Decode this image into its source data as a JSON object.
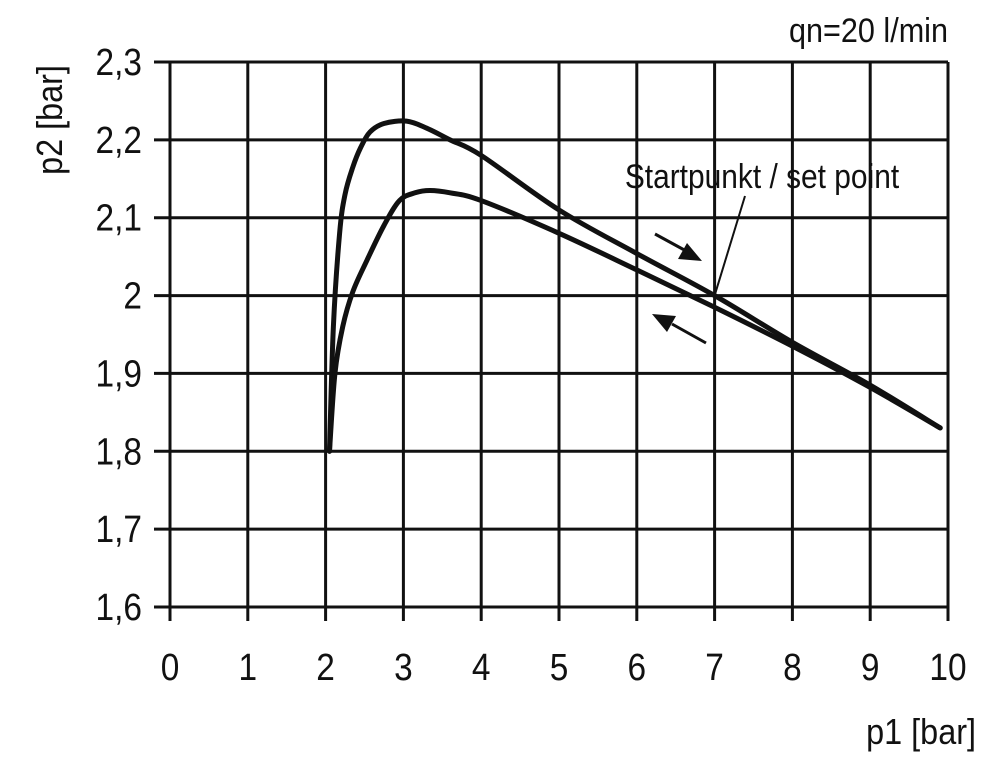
{
  "chart_data": {
    "type": "line",
    "title": "",
    "annotation_flow": "qn=20 l/min",
    "annotation_setpoint": "Startpunkt / set point",
    "setpoint": [
      7,
      2.0
    ],
    "xlabel": "p1 [bar]",
    "ylabel": "p2 [bar]",
    "xlim": [
      0,
      10
    ],
    "ylim": [
      1.6,
      2.3
    ],
    "grid": true,
    "x_ticks": [
      0,
      1,
      2,
      3,
      4,
      5,
      6,
      7,
      8,
      9,
      10
    ],
    "x_tick_labels": [
      "0",
      "1",
      "2",
      "3",
      "4",
      "5",
      "6",
      "7",
      "8",
      "9",
      "10"
    ],
    "y_ticks": [
      1.6,
      1.7,
      1.8,
      1.9,
      2.0,
      2.1,
      2.2,
      2.3
    ],
    "y_tick_labels": [
      "1,6",
      "1,7",
      "1,8",
      "1,9",
      "2",
      "2,1",
      "2,2",
      "2,3"
    ],
    "line_color": "#111111",
    "series": [
      {
        "x": [
          2.05,
          2.1,
          2.18,
          2.25,
          2.35,
          2.45,
          2.57,
          2.75,
          3.04,
          3.3,
          3.6,
          4.0,
          5.0,
          6.0,
          7.0,
          8.0,
          9.0,
          9.9
        ],
        "y": [
          1.8,
          1.96,
          2.08,
          2.13,
          2.165,
          2.19,
          2.21,
          2.221,
          2.224,
          2.215,
          2.2,
          2.18,
          2.11,
          2.054,
          2.0,
          1.94,
          1.885,
          1.83
        ]
      },
      {
        "x": [
          2.05,
          2.12,
          2.22,
          2.35,
          2.53,
          2.75,
          2.95,
          3.15,
          3.34,
          3.6,
          4.0,
          5.0,
          6.0,
          7.0,
          8.0,
          9.0,
          9.9
        ],
        "y": [
          1.8,
          1.9,
          1.96,
          2.005,
          2.045,
          2.09,
          2.122,
          2.132,
          2.135,
          2.132,
          2.122,
          2.08,
          2.033,
          1.985,
          1.935,
          1.882,
          1.83
        ]
      }
    ]
  }
}
